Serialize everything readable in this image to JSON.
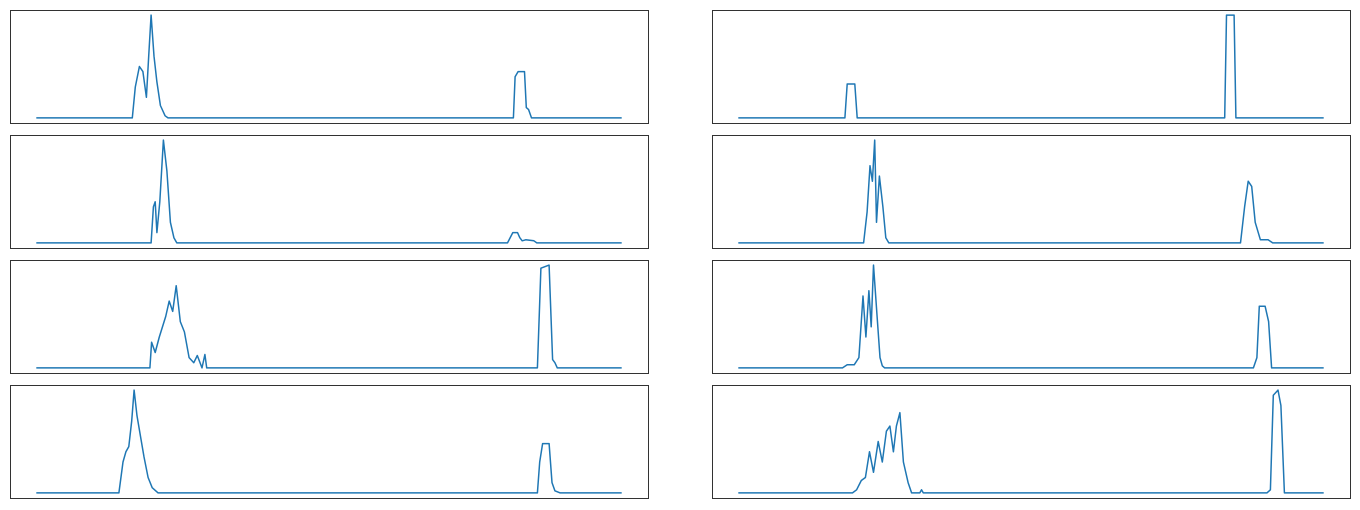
{
  "chart_data": [
    {
      "type": "line",
      "color": "#1f77b4",
      "x": [
        0,
        16.4,
        16.9,
        17.6,
        18.2,
        18.8,
        19.2,
        19.6,
        20.1,
        20.6,
        21.2,
        22,
        22.5,
        81.5,
        81.8,
        82.3,
        83.4,
        83.7,
        84.1,
        84.6,
        100
      ],
      "values": [
        0,
        0,
        0.3,
        0.5,
        0.45,
        0.2,
        0.6,
        1,
        0.6,
        0.35,
        0.12,
        0.02,
        0,
        0,
        0.4,
        0.45,
        0.45,
        0.1,
        0.08,
        0,
        0
      ]
    },
    {
      "type": "line",
      "color": "#1f77b4",
      "x": [
        0,
        18.2,
        18.6,
        19.9,
        20.3,
        83.1,
        83.4,
        84.7,
        85.0,
        100
      ],
      "values": [
        0,
        0,
        0.33,
        0.33,
        0,
        0,
        1,
        1,
        0,
        0
      ]
    },
    {
      "type": "line",
      "color": "#1f77b4",
      "x": [
        0,
        19.6,
        20.0,
        20.3,
        20.6,
        21.1,
        21.7,
        22.3,
        22.9,
        23.5,
        24,
        80.5,
        81.4,
        82.2,
        82.6,
        83,
        83.6,
        85,
        85.5,
        100
      ],
      "values": [
        0,
        0,
        0.35,
        0.4,
        0.1,
        0.4,
        1,
        0.7,
        0.2,
        0.05,
        0,
        0,
        0.1,
        0.1,
        0.05,
        0.02,
        0.03,
        0.02,
        0,
        0
      ]
    },
    {
      "type": "line",
      "color": "#1f77b4",
      "x": [
        0,
        21.4,
        22.0,
        22.5,
        22.9,
        23.3,
        23.6,
        24.1,
        24.7,
        25.2,
        25.7,
        26.2,
        85.8,
        86.5,
        87.1,
        87.7,
        88.3,
        89.2,
        90.5,
        91.3,
        100
      ],
      "values": [
        0,
        0,
        0.3,
        0.75,
        0.6,
        1,
        0.2,
        0.65,
        0.35,
        0.05,
        0,
        0,
        0,
        0.35,
        0.6,
        0.55,
        0.2,
        0.03,
        0.03,
        0,
        0
      ]
    },
    {
      "type": "line",
      "color": "#1f77b4",
      "x": [
        0,
        19.4,
        19.7,
        20.3,
        21,
        22.1,
        22.7,
        23.3,
        23.9,
        24.6,
        25.3,
        26.1,
        26.9,
        27.5,
        28.3,
        28.8,
        29.1,
        29.6,
        30,
        85.6,
        86.2,
        87.6,
        88.2,
        88.6,
        89,
        100
      ],
      "values": [
        0,
        0,
        0.25,
        0.15,
        0.3,
        0.5,
        0.65,
        0.55,
        0.8,
        0.45,
        0.35,
        0.1,
        0.05,
        0.12,
        0,
        0.13,
        0,
        0,
        0,
        0,
        0.97,
        1,
        0.08,
        0.05,
        0,
        0
      ]
    },
    {
      "type": "line",
      "color": "#1f77b4",
      "x": [
        0,
        17.8,
        18.6,
        19.8,
        20.6,
        21.3,
        21.8,
        22.3,
        22.7,
        23.1,
        23.7,
        24.2,
        24.6,
        25,
        25.7,
        88,
        88.6,
        89,
        90,
        90.6,
        91.1,
        100
      ],
      "values": [
        0,
        0,
        0.03,
        0.03,
        0.1,
        0.7,
        0.3,
        0.75,
        0.4,
        1,
        0.5,
        0.1,
        0.02,
        0,
        0,
        0,
        0.1,
        0.6,
        0.6,
        0.45,
        0,
        0
      ]
    },
    {
      "type": "line",
      "color": "#1f77b4",
      "x": [
        0,
        14.1,
        14.8,
        15.3,
        15.8,
        16.3,
        16.7,
        17.2,
        17.8,
        18.4,
        19.1,
        19.8,
        20.8,
        85.6,
        86,
        86.5,
        87.6,
        88.1,
        88.6,
        89.5,
        100
      ],
      "values": [
        0,
        0,
        0.3,
        0.4,
        0.45,
        0.7,
        1,
        0.75,
        0.55,
        0.35,
        0.15,
        0.05,
        0,
        0,
        0.3,
        0.48,
        0.48,
        0.1,
        0.02,
        0,
        0
      ]
    },
    {
      "type": "line",
      "color": "#1f77b4",
      "x": [
        0,
        19.5,
        20.2,
        21,
        21.7,
        22.4,
        23.1,
        23.9,
        24.6,
        25.3,
        25.9,
        26.5,
        27,
        27.6,
        28.2,
        29,
        29.6,
        31,
        31.3,
        31.6,
        90.3,
        90.9,
        91.4,
        92.2,
        92.7,
        93.3,
        100
      ],
      "values": [
        0,
        0,
        0.03,
        0.12,
        0.15,
        0.4,
        0.2,
        0.5,
        0.3,
        0.6,
        0.65,
        0.4,
        0.65,
        0.78,
        0.3,
        0.1,
        0,
        0,
        0.03,
        0,
        0,
        0.03,
        0.95,
        1,
        0.85,
        0,
        0
      ]
    }
  ]
}
